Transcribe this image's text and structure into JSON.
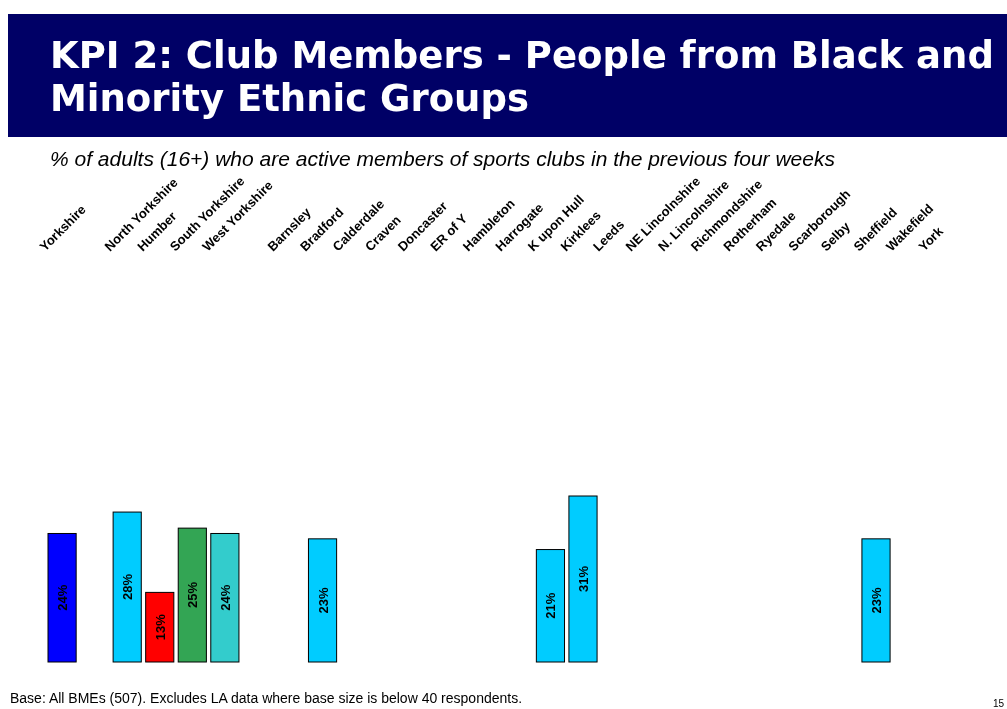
{
  "chart_data": {
    "type": "bar",
    "title": "KPI 2: Club Members - People from Black and Minority Ethnic Groups",
    "subtitle": "% of adults (16+) who are active members of sports clubs in the previous four weeks",
    "categories": [
      "Yorkshire",
      null,
      "North Yorkshire",
      "Humber",
      "South Yorkshire",
      "West Yorkshire",
      null,
      "Barnsley",
      "Bradford",
      "Calderdale",
      "Craven",
      "Doncaster",
      "ER of Y",
      "Hambleton",
      "Harrogate",
      "K upon Hull",
      "Kirklees",
      "Leeds",
      "NE Lincolnshire",
      "N. Lincolnshire",
      "Richmondshire",
      "Rotherham",
      "Ryedale",
      "Scarborough",
      "Selby",
      "Sheffield",
      "Wakefield",
      "York"
    ],
    "values": [
      24,
      null,
      28,
      13,
      25,
      24,
      null,
      null,
      23,
      null,
      null,
      null,
      null,
      null,
      null,
      21,
      31,
      null,
      null,
      null,
      null,
      null,
      null,
      null,
      null,
      23,
      null,
      null
    ],
    "colors": [
      "#0000ff",
      null,
      "#00ccff",
      "#ff0000",
      "#33a554",
      "#33cccc",
      null,
      null,
      "#00ccff",
      null,
      null,
      null,
      null,
      null,
      null,
      "#00ccff",
      "#00ccff",
      null,
      null,
      null,
      null,
      null,
      null,
      null,
      null,
      "#00ccff",
      null,
      null
    ],
    "value_labels": [
      "24%",
      null,
      "28%",
      "13%",
      "25%",
      "24%",
      null,
      null,
      "23%",
      null,
      null,
      null,
      null,
      null,
      null,
      "21%",
      "31%",
      null,
      null,
      null,
      null,
      null,
      null,
      null,
      null,
      "23%",
      null,
      null
    ],
    "annotations": [
      "Base: All BMEs (507). Excludes LA data where base size is below 40 respondents.",
      "15"
    ],
    "grid": false
  }
}
